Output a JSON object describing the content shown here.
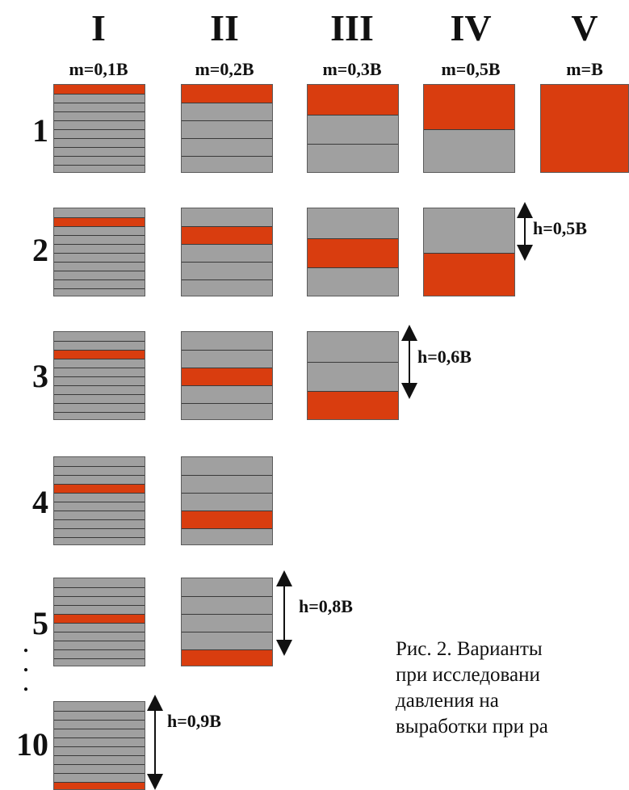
{
  "columns": [
    {
      "roman": "I",
      "m_label": "m=0,1B"
    },
    {
      "roman": "II",
      "m_label": "m=0,2B"
    },
    {
      "roman": "III",
      "m_label": "m=0,3B"
    },
    {
      "roman": "IV",
      "m_label": "m=0,5B"
    },
    {
      "roman": "V",
      "m_label": "m=B"
    }
  ],
  "rows": [
    "1",
    "2",
    "3",
    "4",
    "5",
    "10"
  ],
  "dots": [
    ".",
    ".",
    "."
  ],
  "h_labels": {
    "iv_row2": "h=0,5B",
    "iii_row3": "h=0,6B",
    "ii_row5": "h=0,8B",
    "i_row10": "h=0,9B"
  },
  "colors": {
    "seam": "#d93d0f",
    "rock": "#a0a0a0",
    "line": "#3a3a3a"
  },
  "caption_lines": [
    "Рис.  2.  Варианты",
    "при   исследовани",
    "давления         на",
    "выработки при ра"
  ]
}
